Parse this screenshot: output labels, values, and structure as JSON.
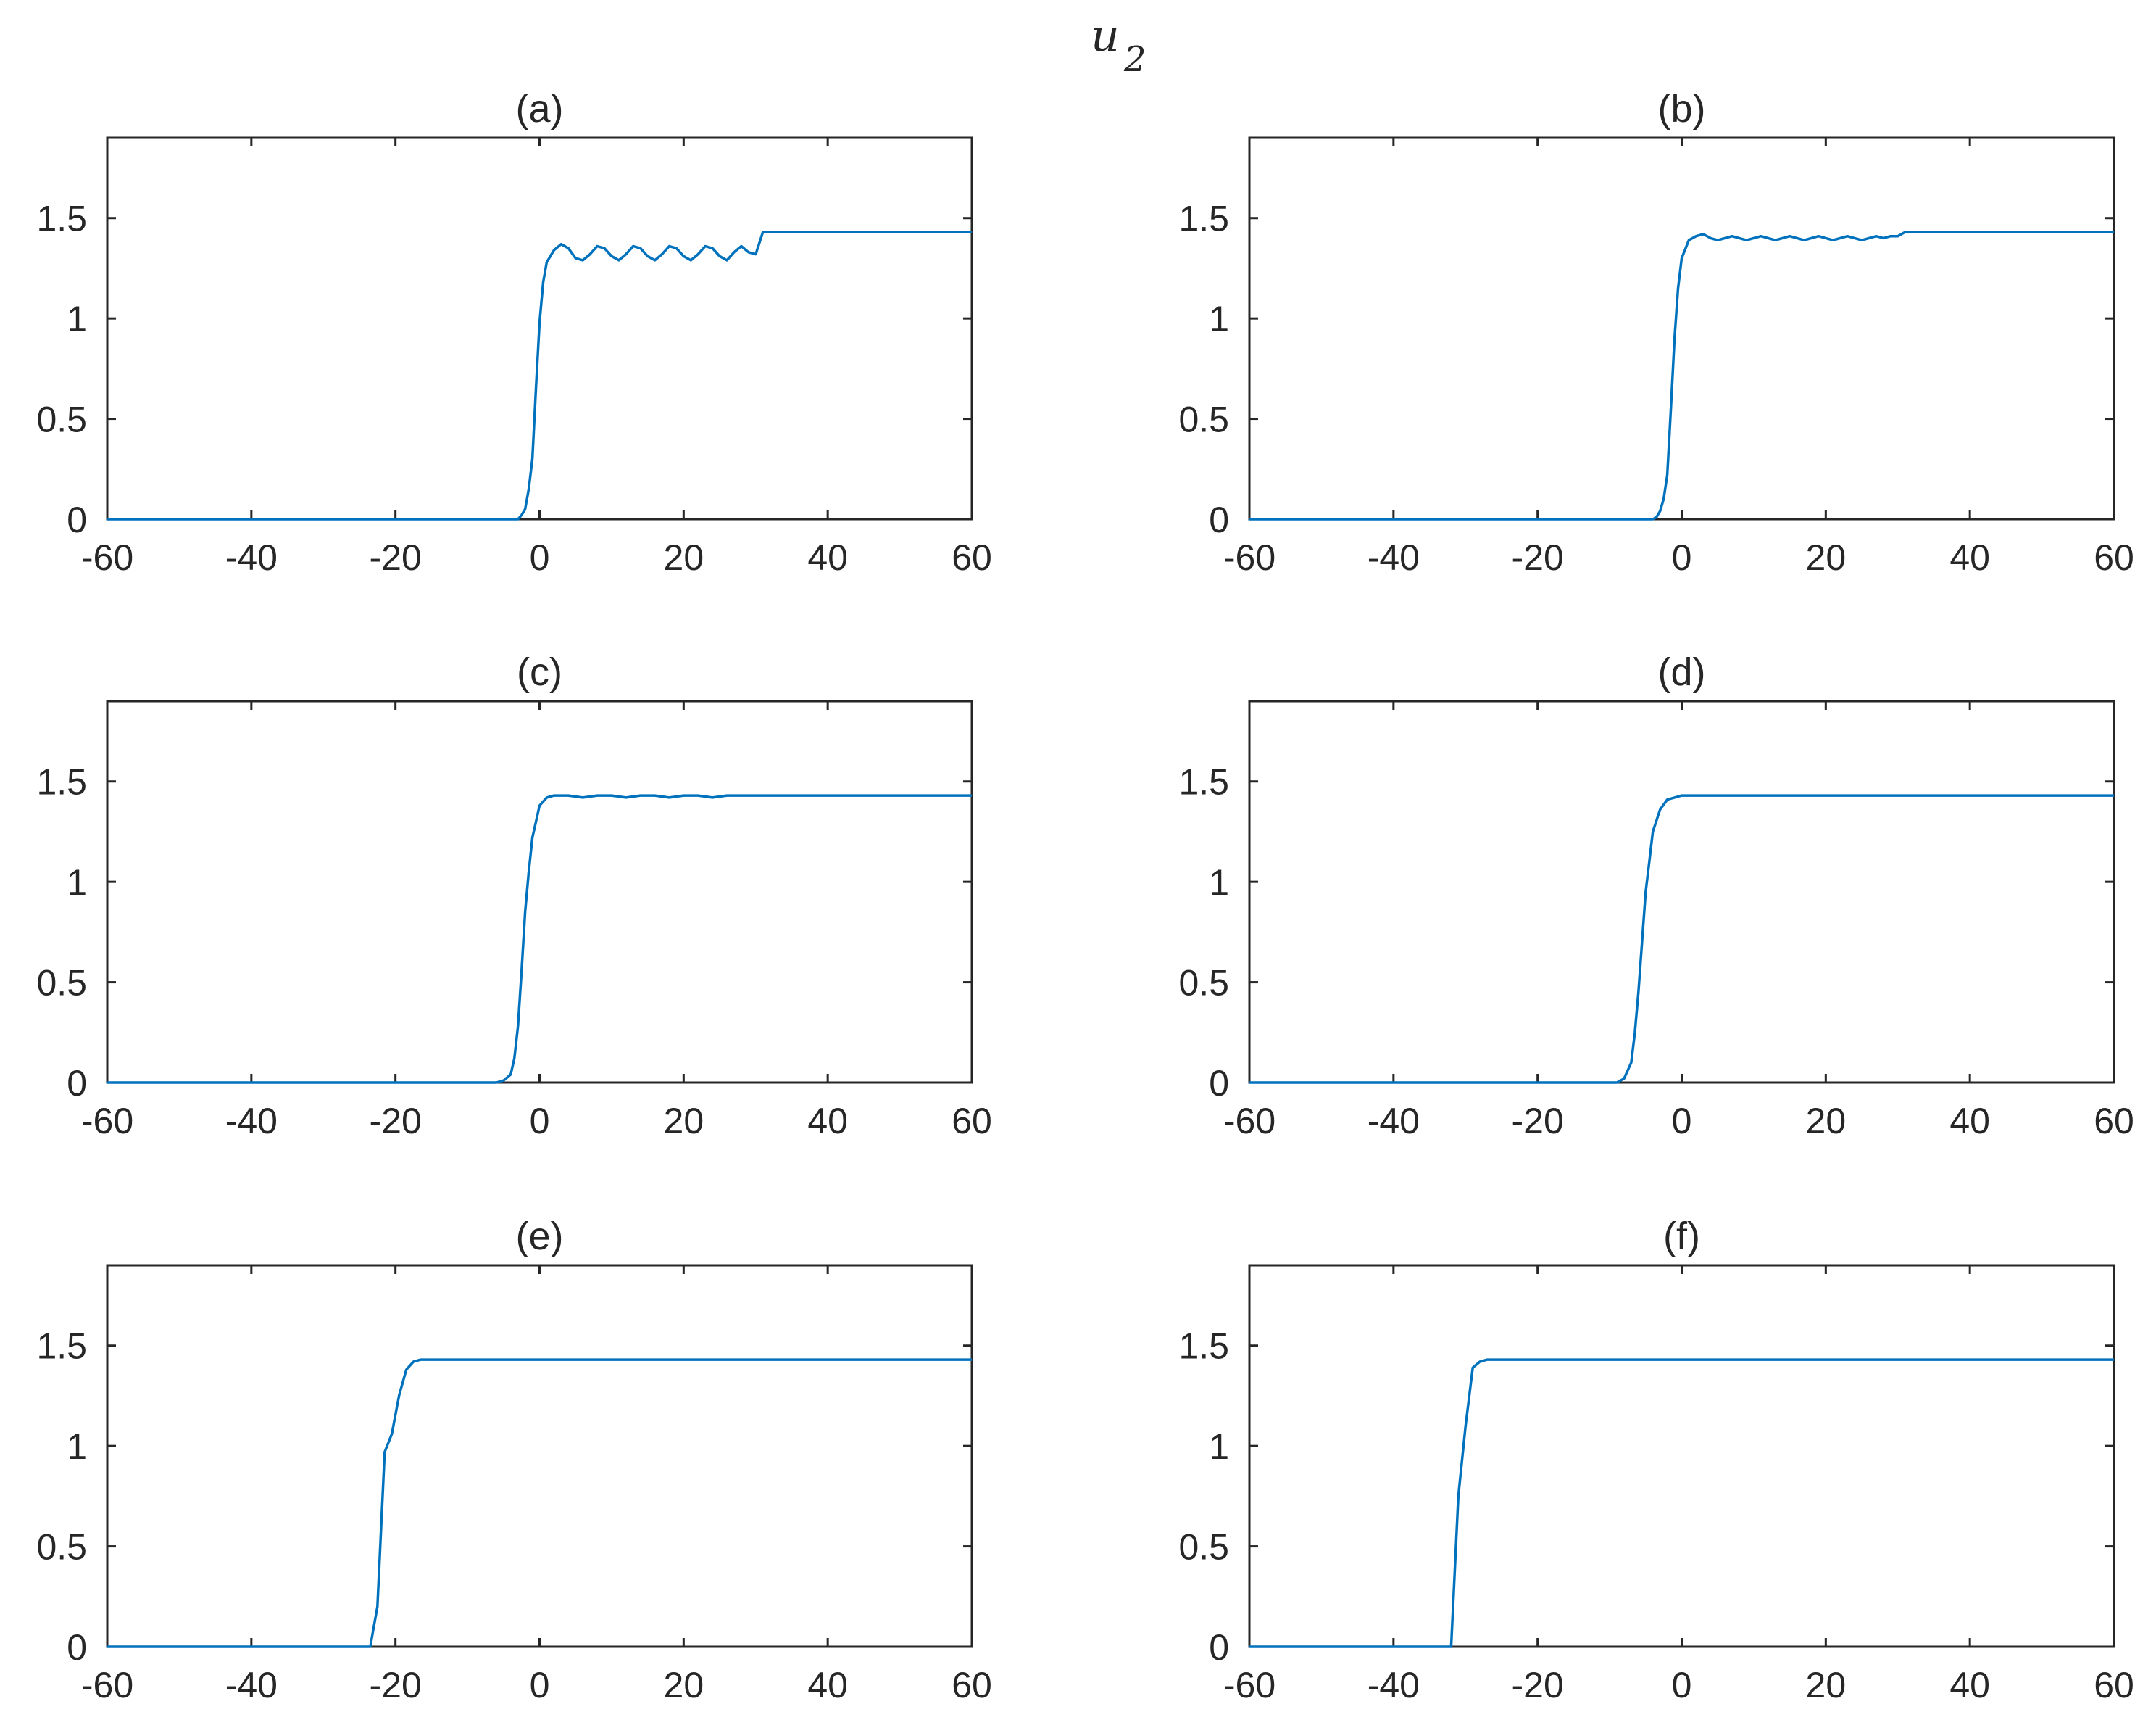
{
  "figure": {
    "suptitle_main": "u",
    "suptitle_sub": "2",
    "colors": {
      "line": "#0072BD",
      "axes": "#262626",
      "background": "#ffffff"
    }
  },
  "chart_data": [
    {
      "type": "line",
      "title": "(a)",
      "xlim": [
        -60,
        60
      ],
      "ylim": [
        0,
        1.9
      ],
      "xticks": [
        "-60",
        "-40",
        "-20",
        "0",
        "20",
        "40",
        "60"
      ],
      "yticks": [
        "0",
        "0.5",
        "1",
        "1.5"
      ],
      "grid": false,
      "series": [
        {
          "x": [
            -60,
            -3,
            -2.5,
            -2,
            -1.5,
            -1,
            -0.5,
            0,
            0.5,
            1,
            2,
            3,
            4,
            5,
            6,
            7,
            8,
            9,
            10,
            11,
            12,
            13,
            14,
            15,
            16,
            17,
            18,
            19,
            20,
            21,
            22,
            23,
            24,
            25,
            26,
            27,
            28,
            29,
            30,
            31,
            60
          ],
          "y": [
            0,
            0,
            0.02,
            0.05,
            0.15,
            0.3,
            0.65,
            0.98,
            1.18,
            1.28,
            1.34,
            1.37,
            1.35,
            1.3,
            1.29,
            1.32,
            1.36,
            1.35,
            1.31,
            1.29,
            1.32,
            1.36,
            1.35,
            1.31,
            1.29,
            1.32,
            1.36,
            1.35,
            1.31,
            1.29,
            1.32,
            1.36,
            1.35,
            1.31,
            1.29,
            1.33,
            1.36,
            1.33,
            1.32,
            1.43,
            1.43
          ]
        }
      ]
    },
    {
      "type": "line",
      "title": "(b)",
      "xlim": [
        -60,
        60
      ],
      "ylim": [
        0,
        1.9
      ],
      "xticks": [
        "-60",
        "-40",
        "-20",
        "0",
        "20",
        "40",
        "60"
      ],
      "yticks": [
        "0",
        "0.5",
        "1",
        "1.5"
      ],
      "grid": false,
      "series": [
        {
          "x": [
            -60,
            -4,
            -3.5,
            -3,
            -2.5,
            -2,
            -1.5,
            -1,
            -0.5,
            0,
            1,
            2,
            3,
            4,
            5,
            6,
            7,
            8,
            9,
            10,
            11,
            12,
            13,
            14,
            15,
            16,
            17,
            18,
            19,
            20,
            21,
            22,
            23,
            24,
            25,
            26,
            27,
            28,
            29,
            30,
            31,
            60
          ],
          "y": [
            0,
            0,
            0.01,
            0.04,
            0.1,
            0.22,
            0.55,
            0.9,
            1.15,
            1.3,
            1.39,
            1.41,
            1.42,
            1.4,
            1.39,
            1.4,
            1.41,
            1.4,
            1.39,
            1.4,
            1.41,
            1.4,
            1.39,
            1.4,
            1.41,
            1.4,
            1.39,
            1.4,
            1.41,
            1.4,
            1.39,
            1.4,
            1.41,
            1.4,
            1.39,
            1.4,
            1.41,
            1.4,
            1.41,
            1.41,
            1.43,
            1.43
          ]
        }
      ]
    },
    {
      "type": "line",
      "title": "(c)",
      "xlim": [
        -60,
        60
      ],
      "ylim": [
        0,
        1.9
      ],
      "xticks": [
        "-60",
        "-40",
        "-20",
        "0",
        "20",
        "40",
        "60"
      ],
      "yticks": [
        "0",
        "0.5",
        "1",
        "1.5"
      ],
      "grid": false,
      "series": [
        {
          "x": [
            -60,
            -6,
            -5,
            -4,
            -3.5,
            -3,
            -2.5,
            -2,
            -1.5,
            -1,
            0,
            1,
            2,
            4,
            6,
            8,
            10,
            12,
            14,
            16,
            18,
            20,
            22,
            24,
            26,
            28,
            30,
            60
          ],
          "y": [
            0,
            0,
            0.01,
            0.04,
            0.12,
            0.28,
            0.55,
            0.85,
            1.05,
            1.22,
            1.38,
            1.42,
            1.43,
            1.43,
            1.42,
            1.43,
            1.43,
            1.42,
            1.43,
            1.43,
            1.42,
            1.43,
            1.43,
            1.42,
            1.43,
            1.43,
            1.43,
            1.43
          ]
        }
      ]
    },
    {
      "type": "line",
      "title": "(d)",
      "xlim": [
        -60,
        60
      ],
      "ylim": [
        0,
        1.9
      ],
      "xticks": [
        "-60",
        "-40",
        "-20",
        "0",
        "20",
        "40",
        "60"
      ],
      "yticks": [
        "0",
        "0.5",
        "1",
        "1.5"
      ],
      "grid": false,
      "series": [
        {
          "x": [
            -60,
            -9,
            -8,
            -7,
            -6.5,
            -6,
            -5.5,
            -5,
            -4.5,
            -4,
            -3,
            -2,
            -1,
            0,
            60
          ],
          "y": [
            0,
            0,
            0.02,
            0.1,
            0.25,
            0.45,
            0.7,
            0.95,
            1.1,
            1.25,
            1.36,
            1.41,
            1.42,
            1.43,
            1.43
          ]
        }
      ]
    },
    {
      "type": "line",
      "title": "(e)",
      "xlim": [
        -60,
        60
      ],
      "ylim": [
        0,
        1.9
      ],
      "xticks": [
        "-60",
        "-40",
        "-20",
        "0",
        "20",
        "40",
        "60"
      ],
      "yticks": [
        "0",
        "0.5",
        "1",
        "1.5"
      ],
      "grid": false,
      "series": [
        {
          "x": [
            -60,
            -23.5,
            -22.5,
            -21.5,
            -20.5,
            -19.5,
            -18.5,
            -17.5,
            -16.5,
            -15.5,
            60
          ],
          "y": [
            0,
            0,
            0.2,
            0.97,
            1.06,
            1.25,
            1.38,
            1.42,
            1.43,
            1.43,
            1.43
          ]
        }
      ]
    },
    {
      "type": "line",
      "title": "(f)",
      "xlim": [
        -60,
        60
      ],
      "ylim": [
        0,
        1.9
      ],
      "xticks": [
        "-60",
        "-40",
        "-20",
        "0",
        "20",
        "40",
        "60"
      ],
      "yticks": [
        "0",
        "0.5",
        "1",
        "1.5"
      ],
      "grid": false,
      "series": [
        {
          "x": [
            -60,
            -32,
            -31,
            -30,
            -29,
            -28,
            -27,
            60
          ],
          "y": [
            0,
            0,
            0.75,
            1.1,
            1.39,
            1.42,
            1.43,
            1.43
          ]
        }
      ]
    }
  ]
}
